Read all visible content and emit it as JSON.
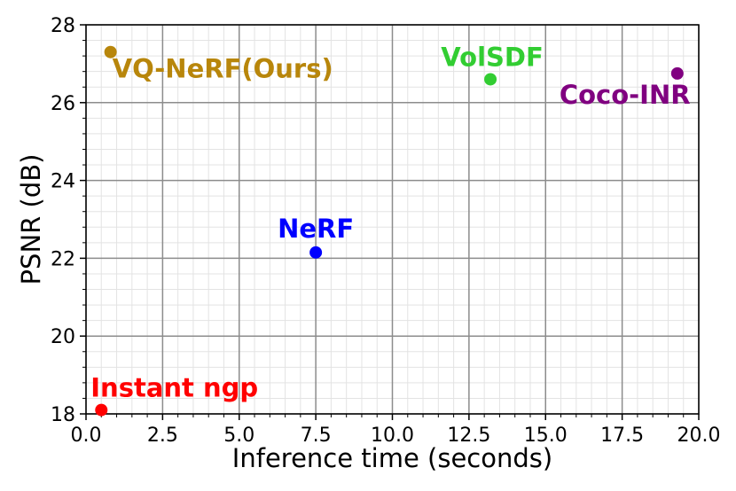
{
  "chart_data": {
    "type": "scatter",
    "title": "",
    "xlabel": "Inference time (seconds)",
    "ylabel": "PSNR (dB)",
    "xlim": [
      0,
      20
    ],
    "ylim": [
      18,
      28
    ],
    "x_ticks": [
      "0.0",
      "2.5",
      "5.0",
      "7.5",
      "10.0",
      "12.5",
      "15.0",
      "17.5",
      "20.0"
    ],
    "y_ticks": [
      "18",
      "20",
      "22",
      "24",
      "26",
      "28"
    ],
    "grid": true,
    "points": [
      {
        "name": "VQ-NeRF(Ours)",
        "x": 0.8,
        "y": 27.3,
        "color": "#b8860b"
      },
      {
        "name": "VolSDF",
        "x": 13.2,
        "y": 26.6,
        "color": "#32cd32"
      },
      {
        "name": "Coco-INR",
        "x": 19.3,
        "y": 26.75,
        "color": "#800080"
      },
      {
        "name": "NeRF",
        "x": 7.5,
        "y": 22.15,
        "color": "#0000ff"
      },
      {
        "name": "Instant ngp",
        "x": 0.5,
        "y": 18.1,
        "color": "#ff0000"
      }
    ]
  }
}
